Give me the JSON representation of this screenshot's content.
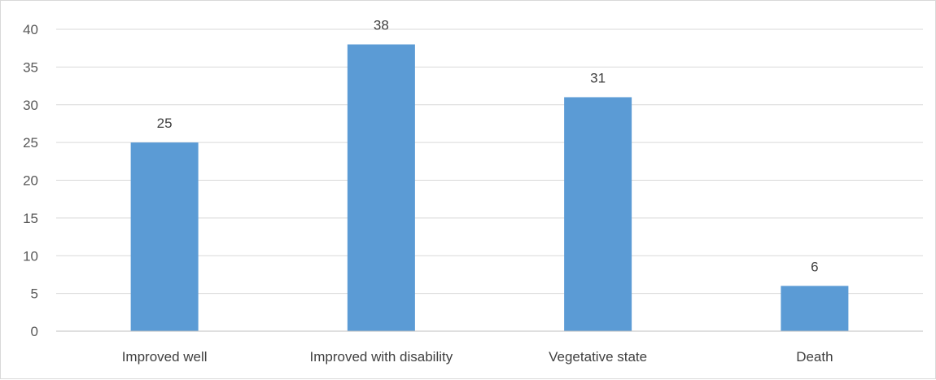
{
  "chart_data": {
    "type": "bar",
    "title": "",
    "xlabel": "",
    "ylabel": "",
    "categories": [
      "Improved well",
      "Improved with disability",
      "Vegetative state",
      "Death"
    ],
    "values": [
      25,
      38,
      31,
      6
    ],
    "ylim": [
      0,
      40
    ],
    "yticks": [
      0,
      5,
      10,
      15,
      20,
      25,
      30,
      35,
      40
    ],
    "grid": true,
    "legend": "none",
    "data_labels": true,
    "colors": {
      "bar": "#5b9bd5",
      "grid": "#d9d9d9",
      "axis": "#bfbfbf"
    }
  }
}
